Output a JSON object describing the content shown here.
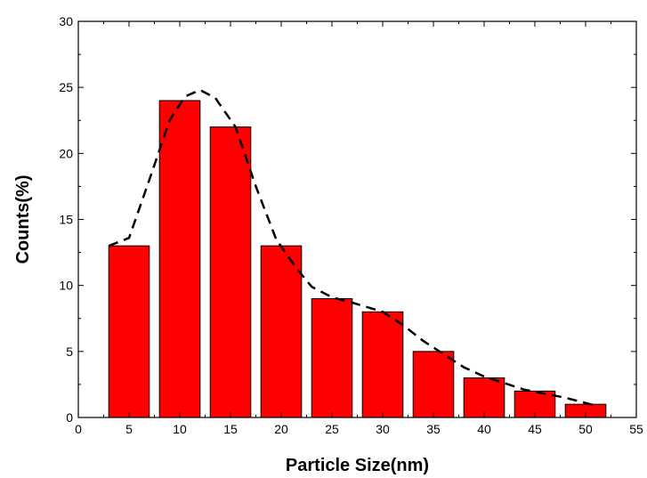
{
  "chart_data": {
    "type": "bar",
    "title": "",
    "xlabel": "Particle Size(nm)",
    "ylabel": "Counts(%)",
    "xlim": [
      0,
      55
    ],
    "ylim": [
      0,
      30
    ],
    "x_ticks": [
      0,
      5,
      10,
      15,
      20,
      25,
      30,
      35,
      40,
      45,
      50,
      55
    ],
    "y_ticks": [
      0,
      5,
      10,
      15,
      20,
      25,
      30
    ],
    "grid": false,
    "bar_width": 4,
    "bar_color": "#ff0000",
    "bar_edge_color": "#000000",
    "series": [
      {
        "x": [
          5,
          10,
          15,
          20,
          25,
          30,
          35,
          40,
          45,
          50
        ],
        "values": [
          13,
          24,
          22,
          13,
          9,
          8,
          5,
          3,
          2,
          1
        ]
      }
    ],
    "fit_curve": {
      "style": "dashed",
      "color": "#000000",
      "points": [
        [
          3.0,
          13.0
        ],
        [
          5.0,
          13.6
        ],
        [
          7.0,
          18.0
        ],
        [
          9.0,
          22.5
        ],
        [
          10.5,
          24.3
        ],
        [
          12.0,
          24.8
        ],
        [
          13.5,
          24.2
        ],
        [
          15.5,
          22.0
        ],
        [
          17.5,
          17.5
        ],
        [
          19.5,
          13.5
        ],
        [
          21.5,
          11.3
        ],
        [
          23.0,
          9.9
        ],
        [
          25.0,
          9.1
        ],
        [
          27.0,
          8.7
        ],
        [
          30.0,
          8.0
        ],
        [
          32.0,
          7.0
        ],
        [
          34.0,
          5.8
        ],
        [
          36.0,
          4.8
        ],
        [
          38.0,
          3.8
        ],
        [
          40.0,
          3.1
        ],
        [
          42.0,
          2.6
        ],
        [
          44.0,
          2.1
        ],
        [
          46.0,
          1.8
        ],
        [
          48.0,
          1.5
        ],
        [
          50.0,
          1.1
        ],
        [
          51.0,
          0.9
        ]
      ]
    }
  }
}
